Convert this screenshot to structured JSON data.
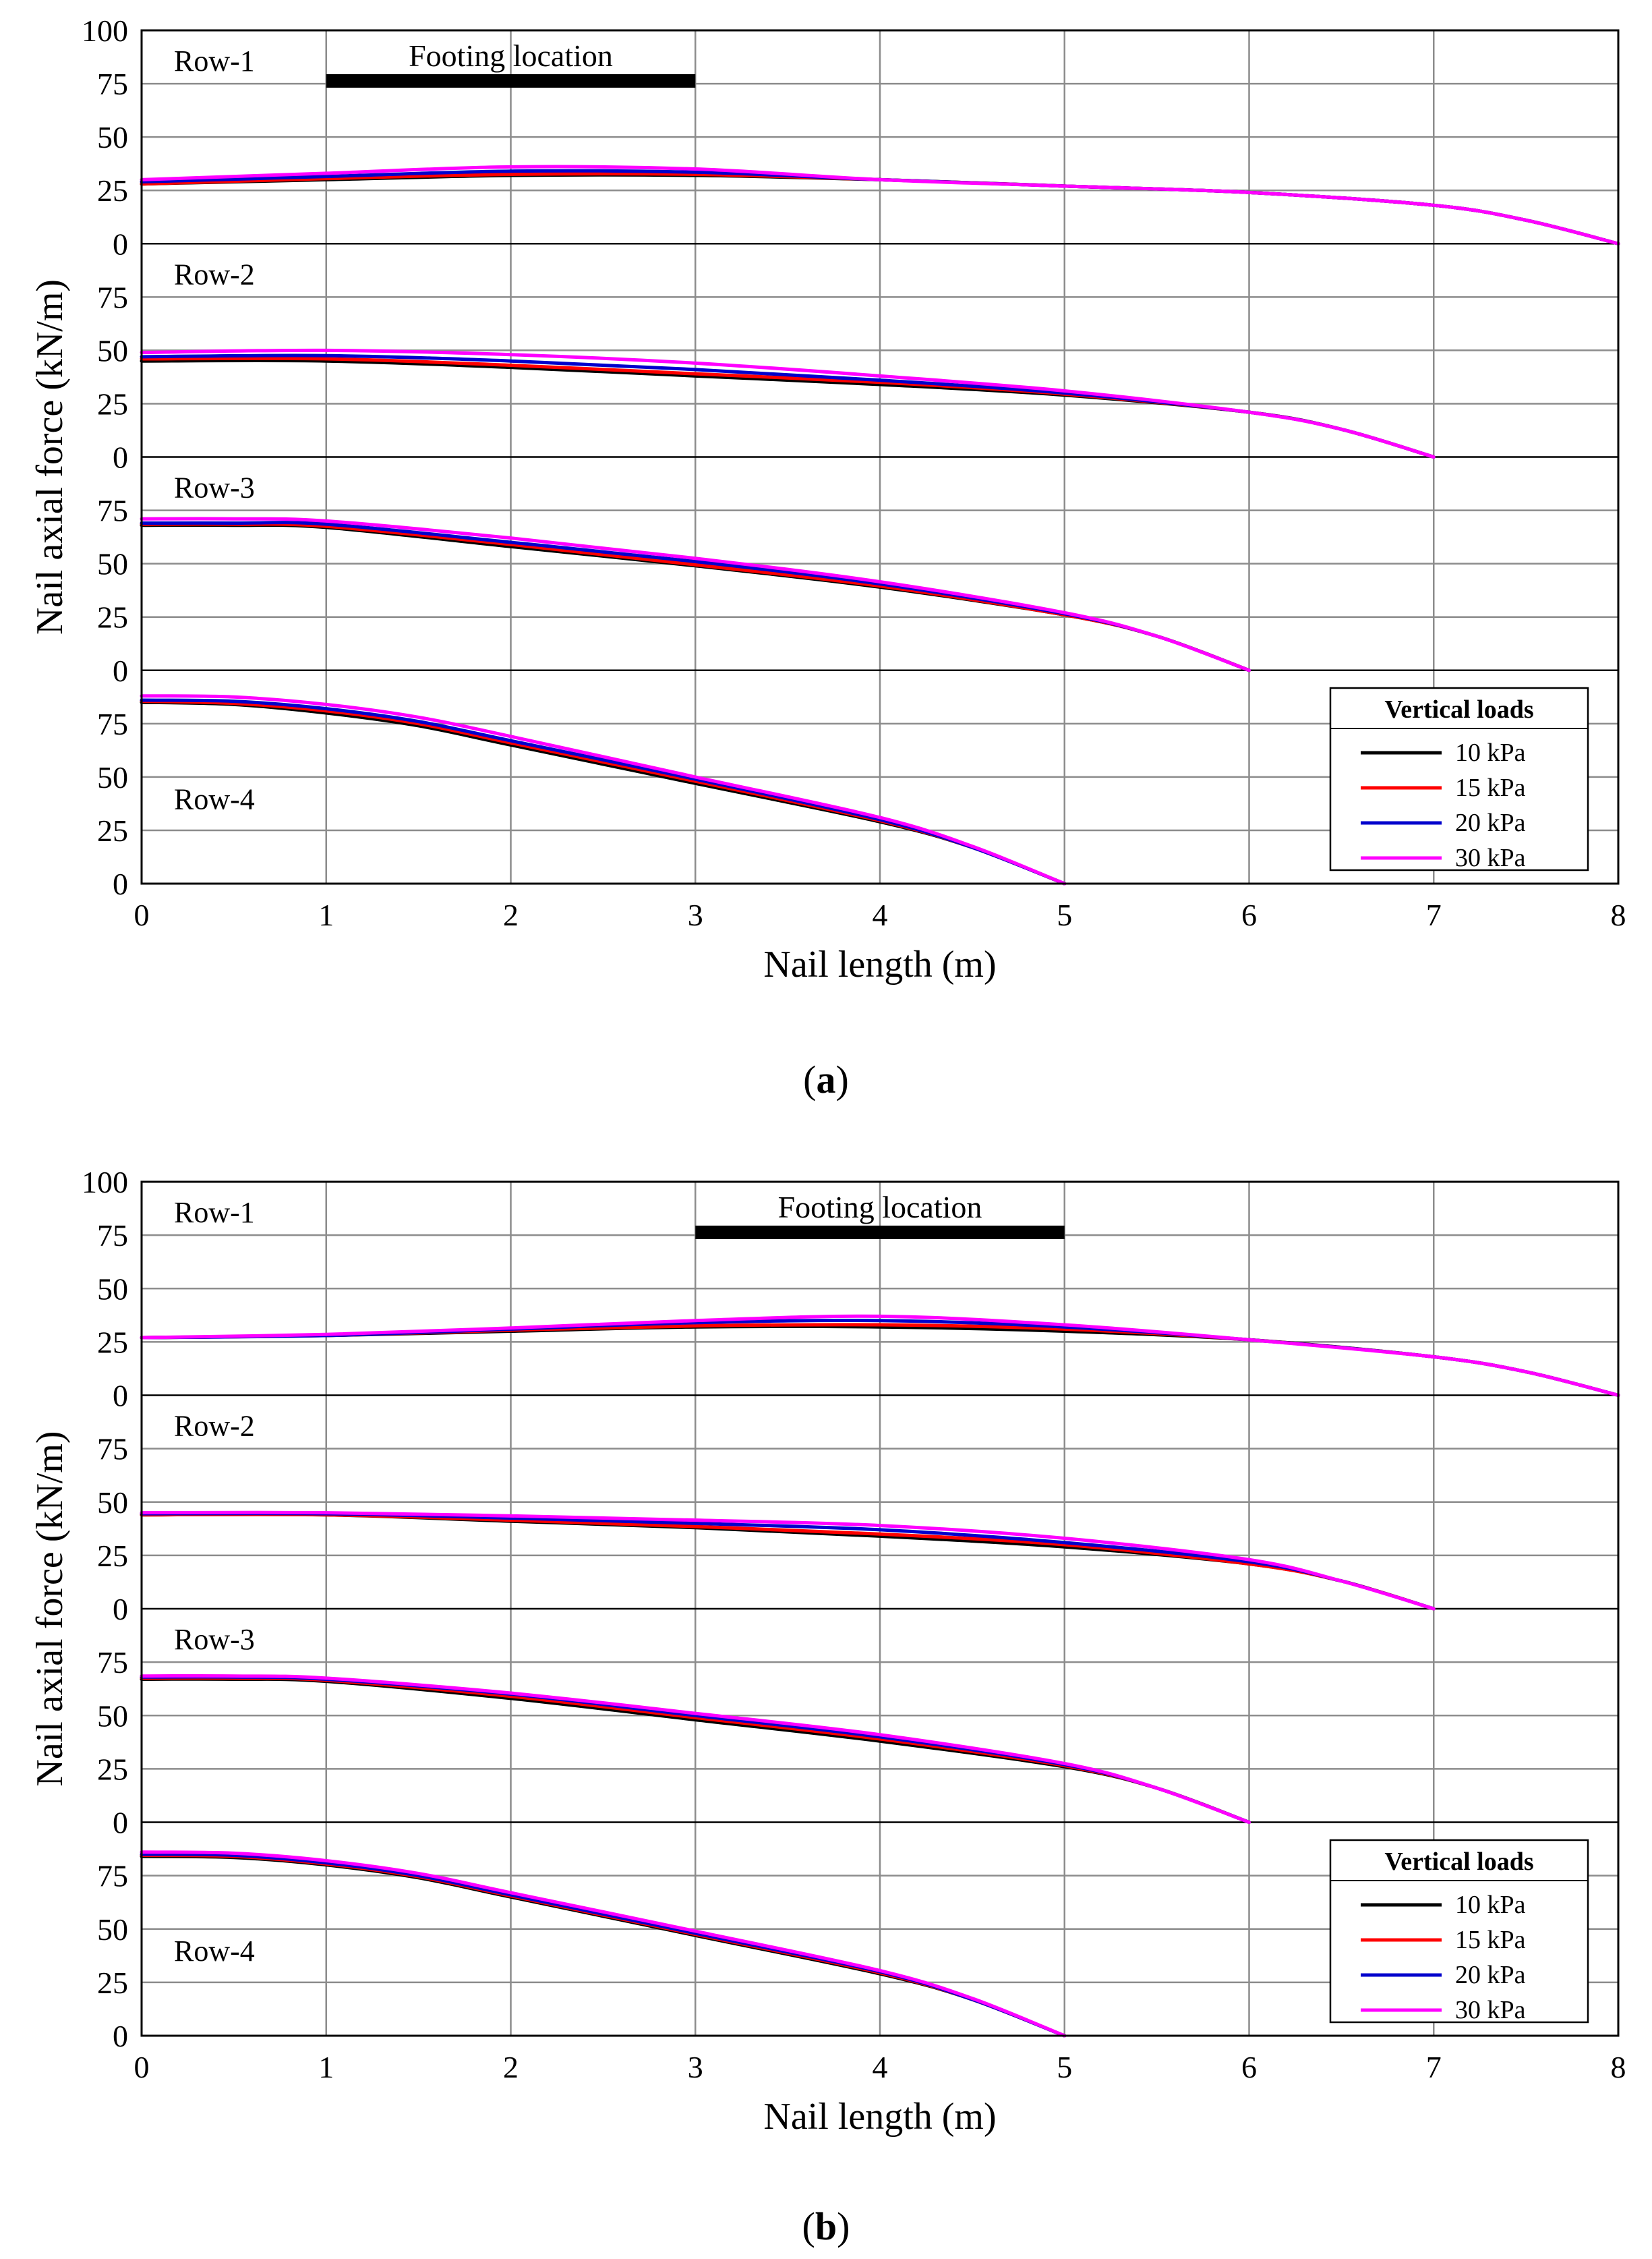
{
  "figure": {
    "panels": [
      {
        "caption_open": "(",
        "caption_letter": "a",
        "caption_close": ")",
        "footing_label": "Footing location",
        "footing_range": [
          1,
          3
        ],
        "ylabel": "Nail axial force (kN/m)",
        "xlabel": "Nail length (m)"
      },
      {
        "caption_open": "(",
        "caption_letter": "b",
        "caption_close": ")",
        "footing_label": "Footing location",
        "footing_range": [
          3,
          5
        ],
        "ylabel": "Nail axial force (kN/m)",
        "xlabel": "Nail length (m)"
      }
    ]
  },
  "legend": {
    "title": "Vertical loads",
    "entries": [
      {
        "label": "10 kPa",
        "color": "#000000"
      },
      {
        "label": "15 kPa",
        "color": "#ff0000"
      },
      {
        "label": "20 kPa",
        "color": "#0000cc"
      },
      {
        "label": "30 kPa",
        "color": "#ff00ff"
      }
    ]
  },
  "colors": {
    "grid": "#8c8c8c",
    "axis": "#000000",
    "footing_bar": "#000000"
  },
  "chart_data": [
    {
      "type": "line",
      "panel": "a",
      "ylabel": "Nail axial force (kN/m)",
      "xlabel": "Nail length (m)",
      "xlim": [
        0,
        8
      ],
      "xticks": [
        "0",
        "1",
        "2",
        "3",
        "4",
        "5",
        "6",
        "7",
        "8"
      ],
      "top_tick": "100",
      "subplot_ylim": [
        0,
        100
      ],
      "subplot_yticks": [
        "75",
        "50",
        "25",
        "0"
      ],
      "legend": {
        "title": "Vertical loads",
        "position": "bottom-right"
      },
      "footing": {
        "label": "Footing location",
        "x_range": [
          1,
          3
        ]
      },
      "rows": [
        {
          "label": "Row-1",
          "series": [
            {
              "name": "10 kPa",
              "x": [
                0,
                1,
                2,
                3,
                4,
                5,
                6,
                7,
                7.5,
                8
              ],
              "y": [
                28,
                30,
                32,
                32,
                30,
                27,
                24,
                18,
                11,
                0
              ]
            },
            {
              "name": "15 kPa",
              "x": [
                0,
                1,
                2,
                3,
                4,
                5,
                6,
                7,
                7.5,
                8
              ],
              "y": [
                28,
                30.5,
                32.5,
                32.5,
                30,
                27,
                24,
                18,
                11,
                0
              ]
            },
            {
              "name": "20 kPa",
              "x": [
                0,
                1,
                2,
                3,
                4,
                5,
                6,
                7,
                7.5,
                8
              ],
              "y": [
                29,
                31.5,
                34,
                33.5,
                30,
                27,
                24,
                18,
                11,
                0
              ]
            },
            {
              "name": "30 kPa",
              "x": [
                0,
                1,
                2,
                3,
                4,
                5,
                6,
                7,
                7.5,
                8
              ],
              "y": [
                30,
                33,
                36,
                35,
                30,
                27,
                24,
                18,
                11,
                0
              ]
            }
          ]
        },
        {
          "label": "Row-2",
          "series": [
            {
              "name": "10 kPa",
              "x": [
                0,
                1,
                2,
                3,
                4,
                5,
                6,
                6.5,
                7
              ],
              "y": [
                45,
                45,
                42,
                38,
                34,
                29,
                21,
                13,
                0
              ]
            },
            {
              "name": "15 kPa",
              "x": [
                0,
                1,
                2,
                3,
                4,
                5,
                6,
                6.5,
                7
              ],
              "y": [
                46,
                46,
                43,
                39,
                35,
                29.5,
                21,
                13,
                0
              ]
            },
            {
              "name": "20 kPa",
              "x": [
                0,
                1,
                2,
                3,
                4,
                5,
                6,
                6.5,
                7
              ],
              "y": [
                47,
                47.5,
                45,
                41,
                36,
                30,
                21,
                13,
                0
              ]
            },
            {
              "name": "30 kPa",
              "x": [
                0,
                1,
                2,
                3,
                4,
                5,
                6,
                6.5,
                7
              ],
              "y": [
                49,
                50,
                48,
                44,
                38,
                31,
                21,
                13,
                0
              ]
            }
          ]
        },
        {
          "label": "Row-3",
          "series": [
            {
              "name": "10 kPa",
              "x": [
                0,
                0.5,
                1,
                2,
                3,
                4,
                5,
                5.5,
                6
              ],
              "y": [
                68,
                68,
                67,
                58,
                49,
                39,
                26,
                16,
                0
              ]
            },
            {
              "name": "15 kPa",
              "x": [
                0,
                0.5,
                1,
                2,
                3,
                4,
                5,
                5.5,
                6
              ],
              "y": [
                68.5,
                68.5,
                67.5,
                59,
                49.5,
                39.5,
                26,
                16,
                0
              ]
            },
            {
              "name": "20 kPa",
              "x": [
                0,
                0.5,
                1,
                2,
                3,
                4,
                5,
                5.5,
                6
              ],
              "y": [
                69,
                69,
                68.5,
                60,
                51,
                40.5,
                26.5,
                16,
                0
              ]
            },
            {
              "name": "30 kPa",
              "x": [
                0,
                0.5,
                1,
                2,
                3,
                4,
                5,
                5.5,
                6
              ],
              "y": [
                71,
                71,
                70,
                62,
                52.5,
                41.5,
                27,
                16,
                0
              ]
            }
          ]
        },
        {
          "label": "Row-4",
          "series": [
            {
              "name": "10 kPa",
              "x": [
                0,
                0.5,
                1,
                1.5,
                2,
                3,
                4,
                4.5,
                5
              ],
              "y": [
                85,
                84,
                80,
                74,
                65,
                47,
                29,
                17,
                0
              ]
            },
            {
              "name": "15 kPa",
              "x": [
                0,
                0.5,
                1,
                1.5,
                2,
                3,
                4,
                4.5,
                5
              ],
              "y": [
                85.5,
                84.5,
                81,
                75,
                66,
                48,
                29.5,
                17,
                0
              ]
            },
            {
              "name": "20 kPa",
              "x": [
                0,
                0.5,
                1,
                1.5,
                2,
                3,
                4,
                4.5,
                5
              ],
              "y": [
                86,
                85.5,
                82,
                76,
                67,
                49,
                30,
                17,
                0
              ]
            },
            {
              "name": "30 kPa",
              "x": [
                0,
                0.5,
                1,
                1.5,
                2,
                3,
                4,
                4.5,
                5
              ],
              "y": [
                88,
                87.5,
                84,
                78,
                69,
                50,
                31,
                17.5,
                0
              ]
            }
          ]
        }
      ]
    },
    {
      "type": "line",
      "panel": "b",
      "ylabel": "Nail axial force (kN/m)",
      "xlabel": "Nail length (m)",
      "xlim": [
        0,
        8
      ],
      "xticks": [
        "0",
        "1",
        "2",
        "3",
        "4",
        "5",
        "6",
        "7",
        "8"
      ],
      "top_tick": "100",
      "subplot_ylim": [
        0,
        100
      ],
      "subplot_yticks": [
        "75",
        "50",
        "25",
        "0"
      ],
      "legend": {
        "title": "Vertical loads",
        "position": "bottom-right"
      },
      "footing": {
        "label": "Footing location",
        "x_range": [
          3,
          5
        ]
      },
      "rows": [
        {
          "label": "Row-1",
          "series": [
            {
              "name": "10 kPa",
              "x": [
                0,
                1,
                2,
                3,
                4,
                5,
                6,
                7,
                7.5,
                8
              ],
              "y": [
                27,
                28,
                30,
                32,
                32,
                30,
                26,
                18,
                11,
                0
              ]
            },
            {
              "name": "15 kPa",
              "x": [
                0,
                1,
                2,
                3,
                4,
                5,
                6,
                7,
                7.5,
                8
              ],
              "y": [
                27,
                28,
                30.5,
                32.5,
                33,
                31,
                26,
                18,
                11,
                0
              ]
            },
            {
              "name": "20 kPa",
              "x": [
                0,
                1,
                2,
                3,
                4,
                5,
                6,
                7,
                7.5,
                8
              ],
              "y": [
                27,
                28,
                31,
                34,
                35,
                32,
                26,
                18,
                11,
                0
              ]
            },
            {
              "name": "30 kPa",
              "x": [
                0,
                1,
                2,
                3,
                4,
                5,
                6,
                7,
                7.5,
                8
              ],
              "y": [
                27,
                28.5,
                31.5,
                35,
                37,
                33,
                26,
                18,
                11,
                0
              ]
            }
          ]
        },
        {
          "label": "Row-2",
          "series": [
            {
              "name": "10 kPa",
              "x": [
                0,
                1,
                2,
                3,
                4,
                5,
                6,
                6.5,
                7
              ],
              "y": [
                44,
                44,
                41,
                38,
                34,
                29,
                21,
                13,
                0
              ]
            },
            {
              "name": "15 kPa",
              "x": [
                0,
                1,
                2,
                3,
                4,
                5,
                6,
                6.5,
                7
              ],
              "y": [
                44,
                44,
                41.5,
                38.5,
                35,
                30,
                21,
                13,
                0
              ]
            },
            {
              "name": "20 kPa",
              "x": [
                0,
                1,
                2,
                3,
                4,
                5,
                6,
                6.5,
                7
              ],
              "y": [
                44.5,
                44.5,
                42.5,
                40,
                37,
                31,
                22,
                13,
                0
              ]
            },
            {
              "name": "30 kPa",
              "x": [
                0,
                1,
                2,
                3,
                4,
                5,
                6,
                6.5,
                7
              ],
              "y": [
                45,
                45,
                43.5,
                41.5,
                39,
                33,
                23,
                13,
                0
              ]
            }
          ]
        },
        {
          "label": "Row-3",
          "series": [
            {
              "name": "10 kPa",
              "x": [
                0,
                0.5,
                1,
                2,
                3,
                4,
                5,
                5.5,
                6
              ],
              "y": [
                67,
                67,
                66,
                58,
                48,
                38,
                26,
                16,
                0
              ]
            },
            {
              "name": "15 kPa",
              "x": [
                0,
                0.5,
                1,
                2,
                3,
                4,
                5,
                5.5,
                6
              ],
              "y": [
                67.5,
                67.5,
                66.5,
                59,
                49,
                39,
                26.5,
                16,
                0
              ]
            },
            {
              "name": "20 kPa",
              "x": [
                0,
                0.5,
                1,
                2,
                3,
                4,
                5,
                5.5,
                6
              ],
              "y": [
                68,
                68,
                67,
                60,
                50,
                40,
                27,
                16,
                0
              ]
            },
            {
              "name": "30 kPa",
              "x": [
                0,
                0.5,
                1,
                2,
                3,
                4,
                5,
                5.5,
                6
              ],
              "y": [
                68.5,
                68.5,
                67.5,
                60.5,
                51,
                41,
                27.5,
                16,
                0
              ]
            }
          ]
        },
        {
          "label": "Row-4",
          "series": [
            {
              "name": "10 kPa",
              "x": [
                0,
                0.5,
                1,
                1.5,
                2,
                3,
                4,
                4.5,
                5
              ],
              "y": [
                84,
                83.5,
                80,
                74,
                65,
                47,
                29,
                17,
                0
              ]
            },
            {
              "name": "15 kPa",
              "x": [
                0,
                0.5,
                1,
                1.5,
                2,
                3,
                4,
                4.5,
                5
              ],
              "y": [
                84.5,
                84,
                80.5,
                74.5,
                65.5,
                47.5,
                29.5,
                17,
                0
              ]
            },
            {
              "name": "20 kPa",
              "x": [
                0,
                0.5,
                1,
                1.5,
                2,
                3,
                4,
                4.5,
                5
              ],
              "y": [
                85,
                84.5,
                81,
                75,
                66,
                48,
                30,
                17,
                0
              ]
            },
            {
              "name": "30 kPa",
              "x": [
                0,
                0.5,
                1,
                1.5,
                2,
                3,
                4,
                4.5,
                5
              ],
              "y": [
                86,
                85.5,
                82,
                76,
                67,
                49,
                30.5,
                17.5,
                0
              ]
            }
          ]
        }
      ]
    }
  ]
}
